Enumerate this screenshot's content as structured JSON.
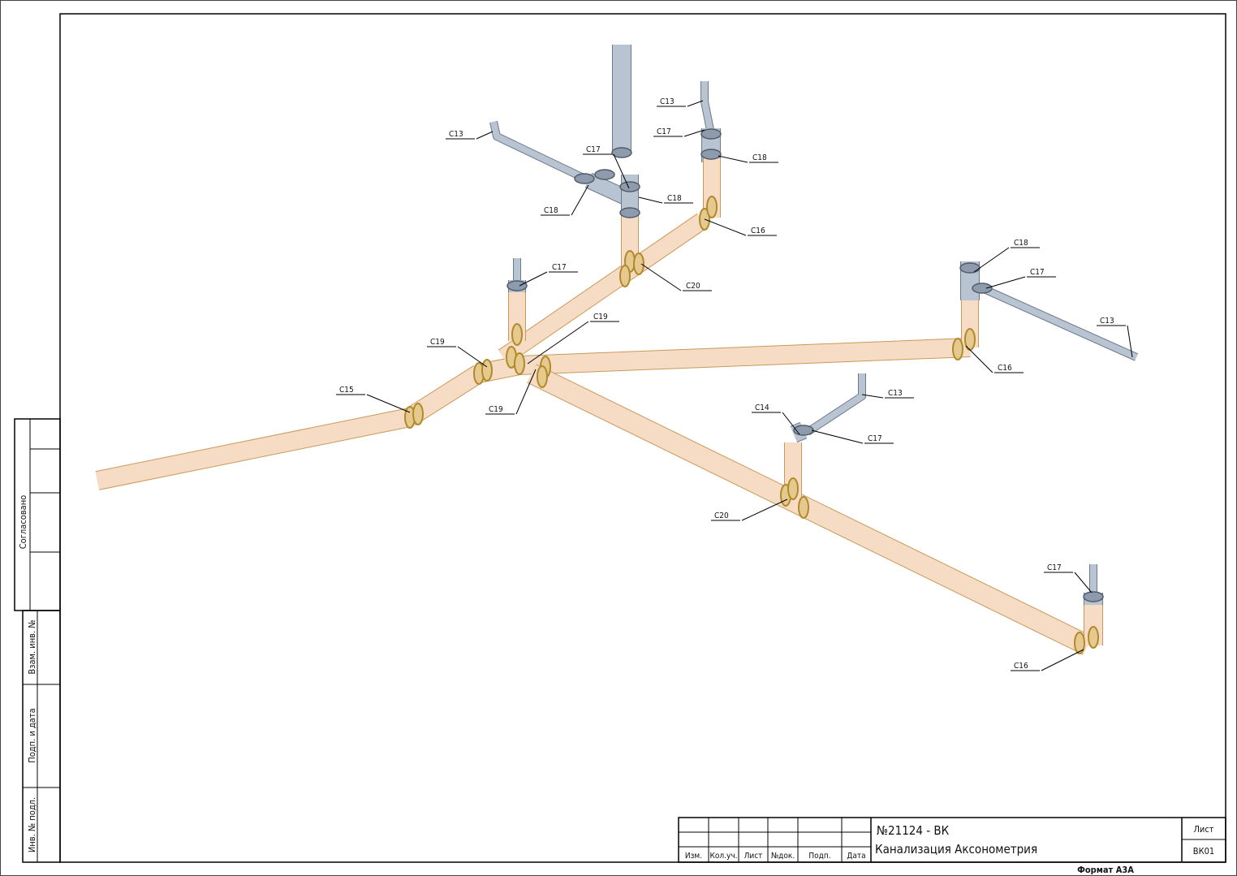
{
  "callouts": [
    "C13",
    "C13",
    "C17",
    "C17",
    "C18",
    "C18",
    "C18",
    "C16",
    "C17",
    "C20",
    "C19",
    "C19",
    "C15",
    "C19",
    "C18",
    "C17",
    "C13",
    "C16",
    "C13",
    "C14",
    "C17",
    "C20",
    "C17",
    "C16"
  ],
  "side_stamp": {
    "approved": "Согласовано",
    "replaced_inv": "Взам. инв. №",
    "sign_date": "Подп. и дата",
    "inv_original": "Инв. № подл."
  },
  "title_block": {
    "headers": [
      "Изм.",
      "Кол.уч.",
      "Лист",
      "№док.",
      "Подп.",
      "Дата"
    ],
    "project": "№21124 - ВК",
    "sheet_title": "Канализация Аксонометрия",
    "sheet_label": "Лист",
    "sheet_code": "ВК01"
  },
  "format": "Формат А3А"
}
